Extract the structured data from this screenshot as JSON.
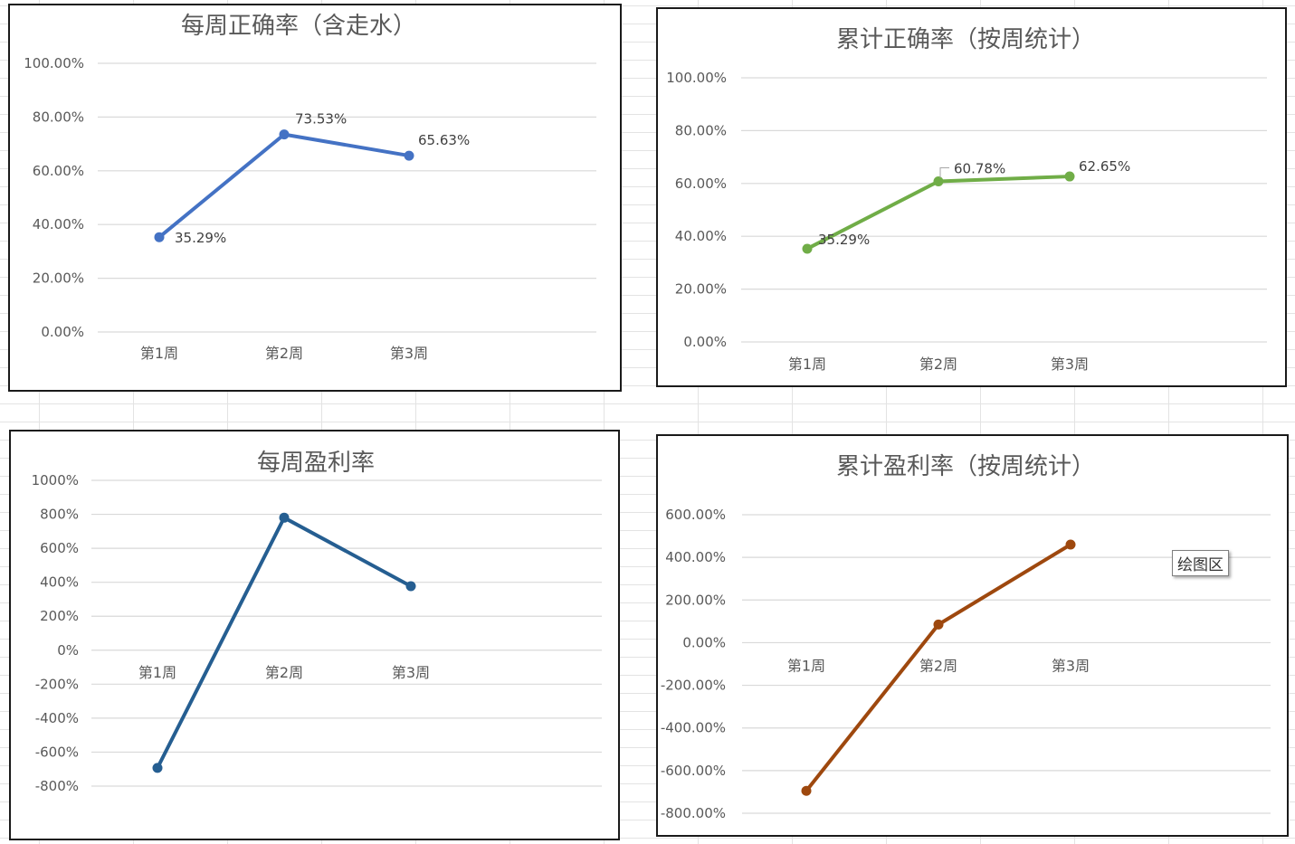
{
  "chart_data": [
    {
      "type": "line",
      "title": "每周正确率（含走水）",
      "categories": [
        "第1周",
        "第2周",
        "第3周"
      ],
      "series": [
        {
          "values": [
            35.29,
            73.53,
            65.63
          ],
          "color": "#4472C4"
        }
      ],
      "data_labels": [
        "35.29%",
        "73.53%",
        "65.63%"
      ],
      "y_ticks": [
        0,
        20,
        40,
        60,
        80,
        100
      ],
      "y_tick_labels": [
        "0.00%",
        "20.00%",
        "40.00%",
        "60.00%",
        "80.00%",
        "100.00%"
      ],
      "ylim": [
        0,
        100
      ],
      "grid": true,
      "legend": "none"
    },
    {
      "type": "line",
      "title": "累计正确率（按周统计）",
      "categories": [
        "第1周",
        "第2周",
        "第3周"
      ],
      "series": [
        {
          "values": [
            35.29,
            60.78,
            62.65
          ],
          "color": "#70AD47"
        }
      ],
      "data_labels": [
        "35.29%",
        "60.78%",
        "62.65%"
      ],
      "y_ticks": [
        0,
        20,
        40,
        60,
        80,
        100
      ],
      "y_tick_labels": [
        "0.00%",
        "20.00%",
        "40.00%",
        "60.00%",
        "80.00%",
        "100.00%"
      ],
      "ylim": [
        0,
        100
      ],
      "grid": true,
      "legend": "none"
    },
    {
      "type": "line",
      "title": "每周盈利率",
      "categories": [
        "第1周",
        "第2周",
        "第3周"
      ],
      "series": [
        {
          "values": [
            -693,
            780,
            377
          ],
          "color": "#255E91"
        }
      ],
      "y_ticks": [
        -800,
        -600,
        -400,
        -200,
        0,
        200,
        400,
        600,
        800,
        1000
      ],
      "y_tick_labels": [
        "-800%",
        "-600%",
        "-400%",
        "-200%",
        "0%",
        "200%",
        "400%",
        "600%",
        "800%",
        "1000%"
      ],
      "ylim": [
        -800,
        1000
      ],
      "grid": true,
      "legend": "none"
    },
    {
      "type": "line",
      "title": "累计盈利率（按周统计）",
      "categories": [
        "第1周",
        "第2周",
        "第3周"
      ],
      "series": [
        {
          "values": [
            -695,
            85,
            460
          ],
          "color": "#9E480E"
        }
      ],
      "y_ticks": [
        -800,
        -600,
        -400,
        -200,
        0,
        200,
        400,
        600
      ],
      "y_tick_labels": [
        "-800.00%",
        "-600.00%",
        "-400.00%",
        "-200.00%",
        "0.00%",
        "200.00%",
        "400.00%",
        "600.00%"
      ],
      "ylim": [
        -800,
        600
      ],
      "grid": true,
      "legend": "none"
    }
  ],
  "tooltip": {
    "label": "绘图区"
  }
}
